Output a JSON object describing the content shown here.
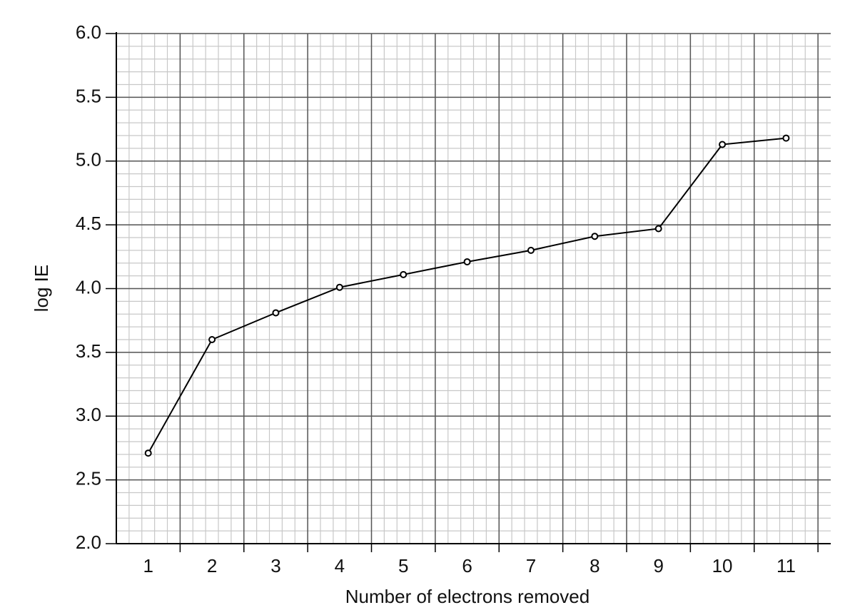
{
  "chart_data": {
    "type": "line",
    "x_label": "Number of electrons removed",
    "y_label": "log IE",
    "x": [
      1,
      2,
      3,
      4,
      5,
      6,
      7,
      8,
      9,
      10,
      11
    ],
    "series": [
      {
        "color": "#000000",
        "values": [
          2.71,
          3.6,
          3.81,
          4.01,
          4.11,
          4.21,
          4.3,
          4.41,
          4.47,
          5.13,
          5.18
        ]
      }
    ],
    "xlim": [
      0.5,
      11.7
    ],
    "xticks": [
      1,
      2,
      3,
      4,
      5,
      6,
      7,
      8,
      9,
      10,
      11
    ],
    "ylim": [
      2.0,
      6.0
    ],
    "yticks": [
      {
        "value": 2.0,
        "label": "2.0"
      },
      {
        "value": 2.5,
        "label": "2.5"
      },
      {
        "value": 3.0,
        "label": "3.0"
      },
      {
        "value": 3.5,
        "label": "3.5"
      },
      {
        "value": 4.0,
        "label": "4.0"
      },
      {
        "value": 4.5,
        "label": "4.5"
      },
      {
        "value": 5.0,
        "label": "5.0"
      },
      {
        "value": 5.5,
        "label": "5.5"
      },
      {
        "value": 6.0,
        "label": "6.0"
      }
    ],
    "grid": {
      "major_x": [
        1.5,
        2.5,
        3.5,
        4.5,
        5.5,
        6.5,
        7.5,
        8.5,
        9.5,
        10.5,
        11.5
      ],
      "minor_step_x": 0.2,
      "minor_step_y": 0.1
    }
  }
}
